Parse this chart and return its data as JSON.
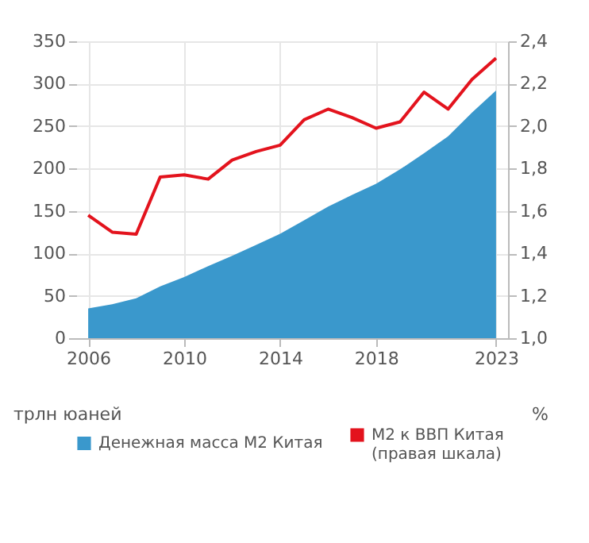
{
  "chart_data": {
    "type": "area",
    "ylabel": "трлн юаней",
    "y2label": "%",
    "x": [
      2006,
      2007,
      2008,
      2009,
      2010,
      2011,
      2012,
      2013,
      2014,
      2015,
      2016,
      2017,
      2018,
      2019,
      2020,
      2021,
      2022,
      2023
    ],
    "series": [
      {
        "name": "Денежная масса М2 Китая",
        "color": "#3a98cc",
        "values": [
          35,
          40,
          47,
          61,
          72,
          85,
          97,
          110,
          123,
          139,
          155,
          169,
          182,
          199,
          218,
          238,
          266,
          292
        ]
      },
      {
        "name": "М2 к ВВП Китая (правая шкала)",
        "color": "#e3131d",
        "type": "line",
        "axis": "y2",
        "values": [
          1.58,
          1.5,
          1.49,
          1.76,
          1.77,
          1.75,
          1.84,
          1.88,
          1.91,
          2.03,
          2.08,
          2.04,
          1.99,
          2.02,
          2.16,
          2.08,
          2.22,
          2.32
        ]
      }
    ],
    "xlim": [
      2005.5,
      2023.5
    ],
    "xticks": [
      2006,
      2010,
      2014,
      2018,
      2023
    ],
    "ylim": [
      0,
      350
    ],
    "yticks": [
      0,
      50,
      100,
      150,
      200,
      250,
      300,
      350
    ],
    "y2lim": [
      1.0,
      2.4
    ],
    "y2ticks": [
      {
        "value": 1.0,
        "label": "1,0"
      },
      {
        "value": 1.2,
        "label": "1,2"
      },
      {
        "value": 1.4,
        "label": "1,4"
      },
      {
        "value": 1.6,
        "label": "1,6"
      },
      {
        "value": 1.8,
        "label": "1,8"
      },
      {
        "value": 2.0,
        "label": "2,0"
      },
      {
        "value": 2.2,
        "label": "2,2"
      },
      {
        "value": 2.4,
        "label": "2,4"
      }
    ],
    "grid": true,
    "legend": "bottom",
    "line_style": "solid",
    "marker": "none"
  }
}
